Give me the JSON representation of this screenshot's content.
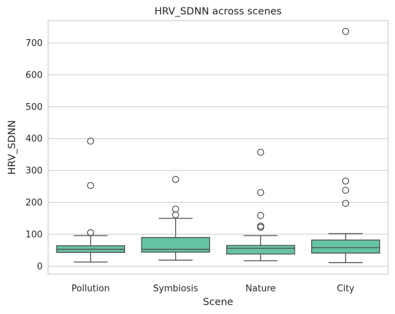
{
  "chart_data": {
    "type": "box",
    "title": "HRV_SDNN across scenes",
    "xlabel": "Scene",
    "ylabel": "HRV_SDNN",
    "categories": [
      "Pollution",
      "Symbiosis",
      "Nature",
      "City"
    ],
    "ylim": [
      -25,
      770
    ],
    "yticks": [
      0,
      100,
      200,
      300,
      400,
      500,
      600,
      700
    ],
    "ytick_labels": [
      "0",
      "100",
      "200",
      "300",
      "400",
      "500",
      "600",
      "700"
    ],
    "grid": "y",
    "box_color": "#66c2a5",
    "line_color": "#4d4d4d",
    "grid_color": "#d0d0d0",
    "boxes": [
      {
        "category": "Pollution",
        "whisker_low": 13,
        "q1": 43,
        "median": 53,
        "q3": 64,
        "whisker_high": 96,
        "outliers": [
          392,
          253,
          105
        ]
      },
      {
        "category": "Symbiosis",
        "whisker_low": 19,
        "q1": 44,
        "median": 53,
        "q3": 90,
        "whisker_high": 150,
        "outliers": [
          272,
          179,
          161
        ]
      },
      {
        "category": "Nature",
        "whisker_low": 17,
        "q1": 38,
        "median": 56,
        "q3": 65,
        "whisker_high": 96,
        "outliers": [
          357,
          231,
          159,
          126,
          122
        ]
      },
      {
        "category": "City",
        "whisker_low": 11,
        "q1": 41,
        "median": 58,
        "q3": 82,
        "whisker_high": 102,
        "outliers": [
          736,
          267,
          238,
          197
        ]
      }
    ]
  }
}
